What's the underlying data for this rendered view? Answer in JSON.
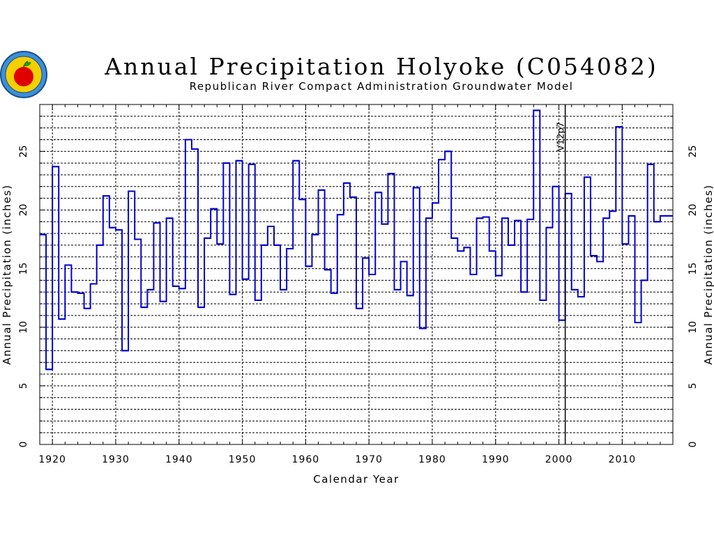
{
  "chart_data": {
    "type": "line",
    "title": "Annual Precipitation Holyoke (C054082)",
    "subtitle": "Republican River Compact Administration Groundwater Model",
    "xlabel": "Calendar Year",
    "ylabel": "Annual Precipitation (inches)",
    "xlim": [
      1918,
      2018
    ],
    "ylim": [
      0,
      29
    ],
    "x_ticks": [
      "1920",
      "1930",
      "1940",
      "1950",
      "1960",
      "1970",
      "1980",
      "1990",
      "2000",
      "2010"
    ],
    "x_tick_values": [
      1920,
      1930,
      1940,
      1950,
      1960,
      1970,
      1980,
      1990,
      2000,
      2010
    ],
    "y_ticks": [
      "0",
      "5",
      "10",
      "15",
      "20",
      "25"
    ],
    "y_tick_values": [
      0,
      5,
      10,
      15,
      20,
      25
    ],
    "grid": true,
    "step": true,
    "marker_line": {
      "x": 2001,
      "label": "V12p7"
    },
    "series": [
      {
        "color": "#0000cc",
        "x": [
          1918,
          1919,
          1920,
          1921,
          1922,
          1923,
          1924,
          1925,
          1926,
          1927,
          1928,
          1929,
          1930,
          1931,
          1932,
          1933,
          1934,
          1935,
          1936,
          1937,
          1938,
          1939,
          1940,
          1941,
          1942,
          1943,
          1944,
          1945,
          1946,
          1947,
          1948,
          1949,
          1950,
          1951,
          1952,
          1953,
          1954,
          1955,
          1956,
          1957,
          1958,
          1959,
          1960,
          1961,
          1962,
          1963,
          1964,
          1965,
          1966,
          1967,
          1968,
          1969,
          1970,
          1971,
          1972,
          1973,
          1974,
          1975,
          1976,
          1977,
          1978,
          1979,
          1980,
          1981,
          1982,
          1983,
          1984,
          1985,
          1986,
          1987,
          1988,
          1989,
          1990,
          1991,
          1992,
          1993,
          1994,
          1995,
          1996,
          1997,
          1998,
          1999,
          2000,
          2001,
          2002,
          2003,
          2004,
          2005,
          2006,
          2007,
          2008,
          2009,
          2010,
          2011,
          2012,
          2013,
          2014,
          2015,
          2016,
          2017
        ],
        "y": [
          17.9,
          6.4,
          23.7,
          10.7,
          15.3,
          13.0,
          12.9,
          11.6,
          13.7,
          17.0,
          21.2,
          18.5,
          18.3,
          8.0,
          21.6,
          17.5,
          11.7,
          13.2,
          18.9,
          12.2,
          19.3,
          13.5,
          13.3,
          26.0,
          25.2,
          11.7,
          17.6,
          20.1,
          17.1,
          24.0,
          12.8,
          24.2,
          14.1,
          23.9,
          12.3,
          17.0,
          18.6,
          17.0,
          13.2,
          16.7,
          24.2,
          20.9,
          15.2,
          17.9,
          21.7,
          14.9,
          12.9,
          19.6,
          22.3,
          21.1,
          11.6,
          15.9,
          14.5,
          21.5,
          18.8,
          23.1,
          13.2,
          15.6,
          12.7,
          21.9,
          9.9,
          19.3,
          20.6,
          24.3,
          25.0,
          17.6,
          16.5,
          16.8,
          14.5,
          19.3,
          19.4,
          16.5,
          14.4,
          19.3,
          17.0,
          19.1,
          13.0,
          19.2,
          28.5,
          12.3,
          18.5,
          22.0,
          10.6,
          21.4,
          13.2,
          12.6,
          22.8,
          16.1,
          15.6,
          19.3,
          19.9,
          27.1,
          17.1,
          19.5,
          10.4,
          14.0,
          23.9,
          19.0,
          19.5,
          19.5
        ]
      }
    ]
  }
}
